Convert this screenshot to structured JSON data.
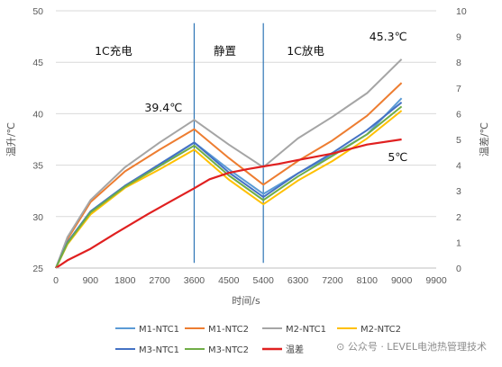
{
  "chart_data": {
    "type": "line",
    "x_label": "时间/s",
    "y_left_label": "温升/℃",
    "y_right_label": "温差/℃",
    "x_ticks": [
      "0",
      "900",
      "1800",
      "2700",
      "3600",
      "4500",
      "5400",
      "6300",
      "7200",
      "8100",
      "9000",
      "9900"
    ],
    "y_left_ticks": [
      "25",
      "30",
      "35",
      "40",
      "45",
      "50"
    ],
    "y_right_ticks": [
      "0",
      "1",
      "2",
      "3",
      "4",
      "5",
      "6",
      "7",
      "8",
      "9",
      "10"
    ],
    "xlim": [
      0,
      9900
    ],
    "ylim_left": [
      25,
      50
    ],
    "ylim_right": [
      0,
      10
    ],
    "grid": "horizontal",
    "legend_position": "bottom",
    "phases": [
      {
        "label": "1C充电",
        "at": 1500
      },
      {
        "label": "静置",
        "at": 4400
      },
      {
        "label": "1C放电",
        "at": 6500
      }
    ],
    "phase_boundaries": [
      3600,
      5400
    ],
    "annotations": [
      {
        "text": "39.4℃",
        "x": 2800,
        "y": 40.2
      },
      {
        "text": "45.3℃",
        "x": 8650,
        "y": 47.1
      },
      {
        "text": "5℃",
        "x": 8900,
        "y": 35.4
      }
    ],
    "series": [
      {
        "name": "M1-NTC1",
        "color": "#5b9bd5",
        "axis": "left",
        "points": [
          [
            0,
            25
          ],
          [
            300,
            27.5
          ],
          [
            900,
            30.5
          ],
          [
            1800,
            33
          ],
          [
            2700,
            35
          ],
          [
            3600,
            37.2
          ],
          [
            4500,
            34.6
          ],
          [
            5400,
            32.2
          ],
          [
            6300,
            34.2
          ],
          [
            7200,
            36
          ],
          [
            8100,
            38
          ],
          [
            9000,
            41.5
          ]
        ]
      },
      {
        "name": "M1-NTC2",
        "color": "#ed7d31",
        "axis": "left",
        "points": [
          [
            0,
            25
          ],
          [
            300,
            27.8
          ],
          [
            900,
            31.4
          ],
          [
            1800,
            34.4
          ],
          [
            2700,
            36.5
          ],
          [
            3600,
            38.5
          ],
          [
            4500,
            35.7
          ],
          [
            5400,
            33.1
          ],
          [
            6300,
            35.4
          ],
          [
            7200,
            37.4
          ],
          [
            8100,
            39.8
          ],
          [
            9000,
            43
          ]
        ]
      },
      {
        "name": "M2-NTC1",
        "color": "#a5a5a5",
        "axis": "left",
        "points": [
          [
            0,
            25
          ],
          [
            300,
            28
          ],
          [
            900,
            31.6
          ],
          [
            1800,
            34.8
          ],
          [
            2700,
            37.2
          ],
          [
            3600,
            39.4
          ],
          [
            4500,
            37
          ],
          [
            5400,
            34.8
          ],
          [
            6300,
            37.6
          ],
          [
            7200,
            39.7
          ],
          [
            8100,
            42
          ],
          [
            9000,
            45.3
          ]
        ]
      },
      {
        "name": "M2-NTC2",
        "color": "#ffc000",
        "axis": "left",
        "points": [
          [
            0,
            25
          ],
          [
            300,
            27.3
          ],
          [
            900,
            30.2
          ],
          [
            1800,
            32.8
          ],
          [
            2700,
            34.6
          ],
          [
            3600,
            36.5
          ],
          [
            4500,
            33.6
          ],
          [
            5400,
            31.2
          ],
          [
            6300,
            33.5
          ],
          [
            7200,
            35.4
          ],
          [
            8100,
            37.6
          ],
          [
            9000,
            40.3
          ]
        ]
      },
      {
        "name": "M3-NTC1",
        "color": "#4472c4",
        "axis": "left",
        "points": [
          [
            0,
            25
          ],
          [
            300,
            27.5
          ],
          [
            900,
            30.5
          ],
          [
            1800,
            33
          ],
          [
            2700,
            35.1
          ],
          [
            3600,
            37.2
          ],
          [
            4500,
            34.3
          ],
          [
            5400,
            31.9
          ],
          [
            6300,
            34.2
          ],
          [
            7200,
            36.2
          ],
          [
            8100,
            38.4
          ],
          [
            9000,
            41.1
          ]
        ]
      },
      {
        "name": "M3-NTC2",
        "color": "#70ad47",
        "axis": "left",
        "points": [
          [
            0,
            25
          ],
          [
            300,
            27.4
          ],
          [
            900,
            30.4
          ],
          [
            1800,
            32.9
          ],
          [
            2700,
            34.9
          ],
          [
            3600,
            36.9
          ],
          [
            4500,
            34
          ],
          [
            5400,
            31.6
          ],
          [
            6300,
            33.9
          ],
          [
            7200,
            35.9
          ],
          [
            8100,
            38
          ],
          [
            9000,
            40.7
          ]
        ]
      },
      {
        "name": "温差",
        "color": "#e02020",
        "axis": "right",
        "points": [
          [
            0,
            0
          ],
          [
            300,
            0.3
          ],
          [
            900,
            0.75
          ],
          [
            1500,
            1.3
          ],
          [
            2400,
            2.1
          ],
          [
            3000,
            2.6
          ],
          [
            3600,
            3.1
          ],
          [
            4000,
            3.45
          ],
          [
            4500,
            3.7
          ],
          [
            5000,
            3.85
          ],
          [
            5400,
            3.95
          ],
          [
            5800,
            4.05
          ],
          [
            6300,
            4.2
          ],
          [
            7200,
            4.45
          ],
          [
            8100,
            4.8
          ],
          [
            9000,
            5.0
          ]
        ]
      }
    ]
  }
}
